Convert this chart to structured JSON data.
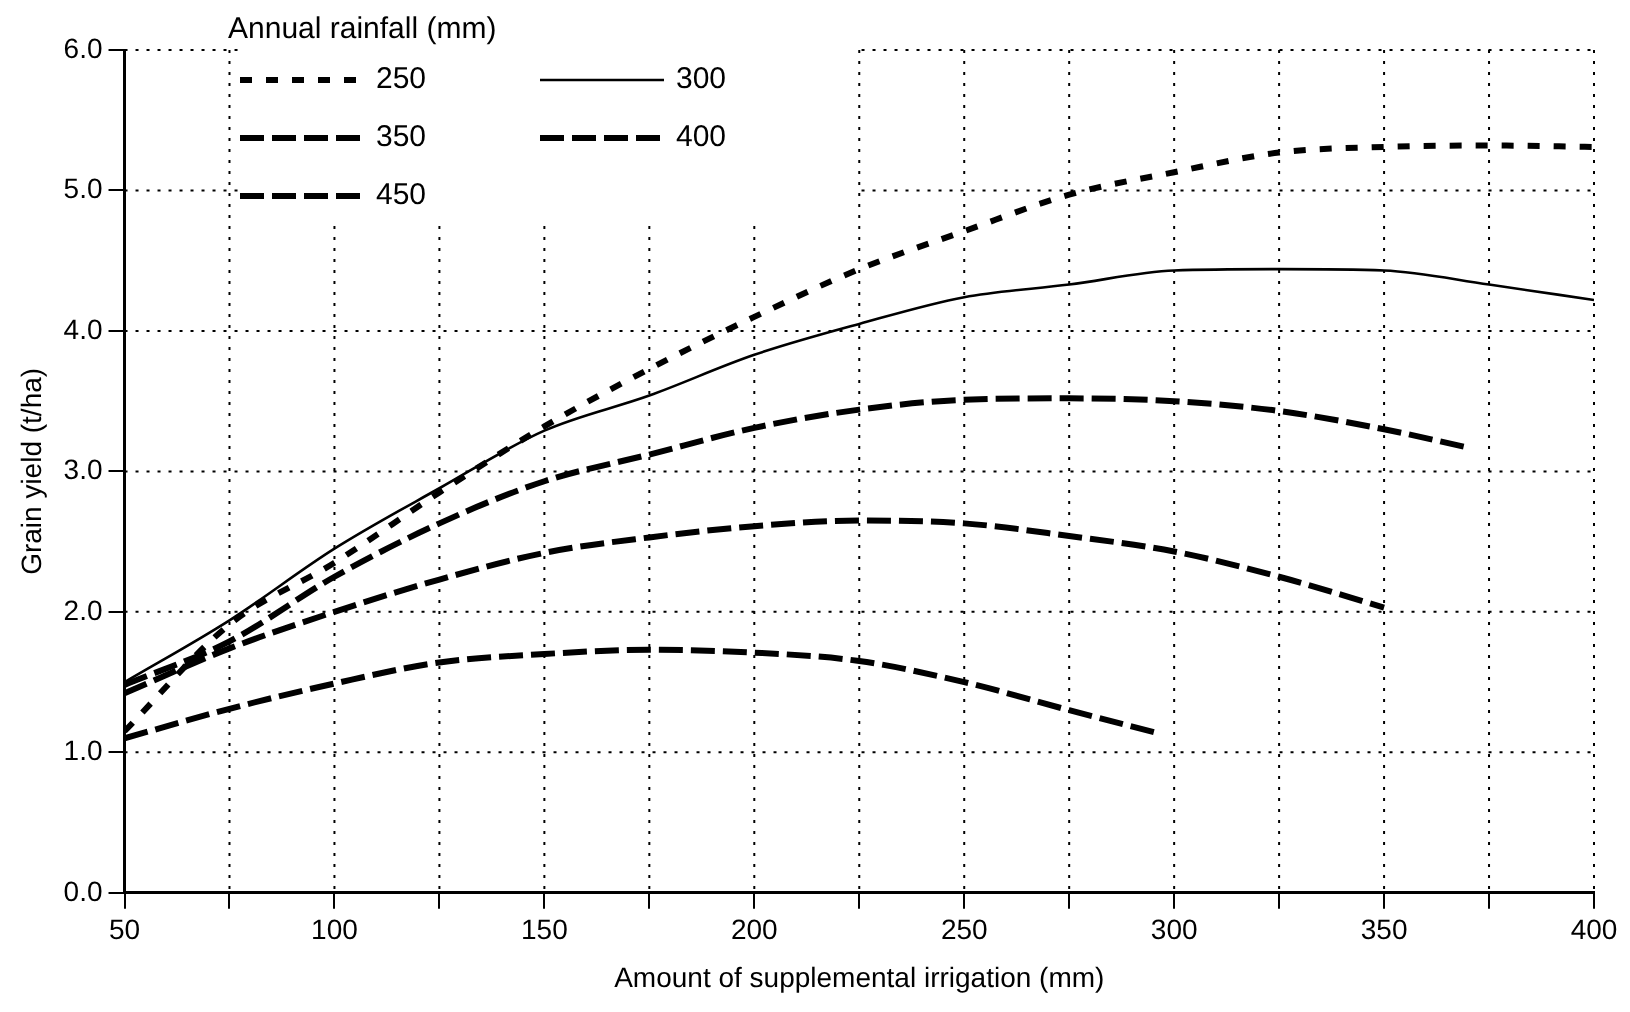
{
  "chart_data": {
    "type": "line",
    "xlabel": "Amount of supplemental irrigation (mm)",
    "ylabel": "Grain yield (t/ha)",
    "legend_title": "Annual rainfall (mm)",
    "x": [
      50,
      75,
      100,
      125,
      150,
      175,
      200,
      225,
      250,
      275,
      300,
      325,
      350,
      375,
      400
    ],
    "series": [
      {
        "name": "250",
        "color": "#000000",
        "line_style": "dotted",
        "values": [
          1.15,
          1.91,
          2.35,
          2.85,
          3.32,
          3.73,
          4.1,
          4.44,
          4.71,
          4.97,
          5.13,
          5.27,
          5.31,
          5.32,
          5.31
        ]
      },
      {
        "name": "300",
        "color": "#000000",
        "line_style": "solid",
        "values": [
          1.5,
          1.94,
          2.45,
          2.88,
          3.29,
          3.54,
          3.83,
          4.05,
          4.24,
          4.33,
          4.43,
          4.44,
          4.43,
          4.33,
          4.22
        ]
      },
      {
        "name": "350",
        "color": "#000000",
        "line_style": "dashed",
        "x": [
          50,
          75,
          100,
          125,
          150,
          175,
          200,
          225,
          250,
          275,
          300,
          325,
          350,
          370
        ],
        "values": [
          1.48,
          1.79,
          2.25,
          2.63,
          2.93,
          3.12,
          3.31,
          3.44,
          3.51,
          3.52,
          3.5,
          3.43,
          3.3,
          3.17
        ]
      },
      {
        "name": "400",
        "color": "#000000",
        "line_style": "dashed",
        "x": [
          50,
          75,
          100,
          125,
          150,
          175,
          200,
          225,
          250,
          275,
          300,
          325,
          350
        ],
        "values": [
          1.42,
          1.74,
          2.0,
          2.23,
          2.42,
          2.53,
          2.61,
          2.65,
          2.63,
          2.54,
          2.43,
          2.25,
          2.03
        ]
      },
      {
        "name": "450",
        "color": "#000000",
        "line_style": "dashed",
        "x": [
          50,
          75,
          100,
          125,
          150,
          175,
          200,
          225,
          250,
          275,
          297
        ],
        "values": [
          1.1,
          1.31,
          1.49,
          1.64,
          1.7,
          1.73,
          1.71,
          1.65,
          1.5,
          1.3,
          1.13
        ]
      }
    ],
    "xlim": [
      50,
      400
    ],
    "xticks": [
      50,
      {
        "value": 75,
        "label": null
      },
      100,
      {
        "value": 125,
        "label": null
      },
      150,
      {
        "value": 175,
        "label": null
      },
      200,
      {
        "value": 225,
        "label": null
      },
      250,
      {
        "value": 275,
        "label": null
      },
      300,
      {
        "value": 325,
        "label": null
      },
      350,
      {
        "value": 375,
        "label": null
      },
      400
    ],
    "ylim": [
      0,
      6
    ],
    "yticks": [
      {
        "value": 0,
        "label": "0.0"
      },
      {
        "value": 1,
        "label": "1.0"
      },
      {
        "value": 2,
        "label": "2.0"
      },
      {
        "value": 3,
        "label": "3.0"
      },
      {
        "value": 4,
        "label": "4.0"
      },
      {
        "value": 5,
        "label": "5.0"
      },
      {
        "value": 6,
        "label": "6.0"
      }
    ],
    "grid": true,
    "legend": "top left",
    "marker": "none"
  }
}
